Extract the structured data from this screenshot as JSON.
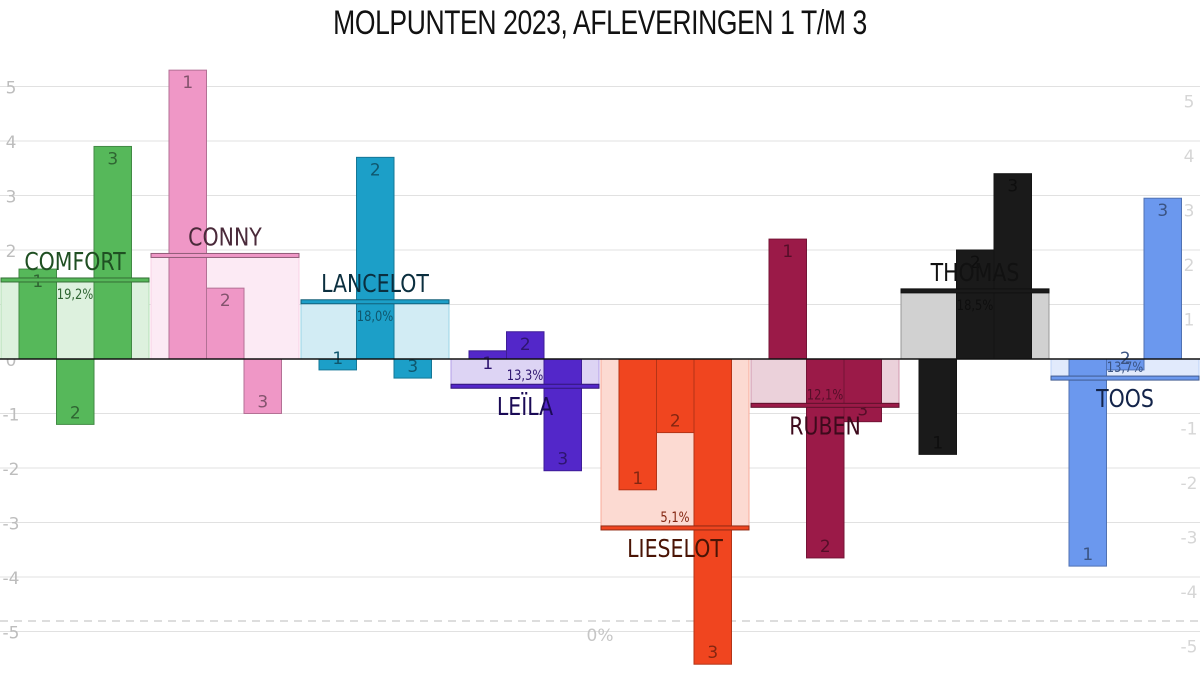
{
  "chart_data": {
    "type": "bar",
    "title": "MOLPUNTEN 2023, AFLEVERINGEN 1 T/M 3",
    "ylim": [
      -5.5,
      5.5
    ],
    "y_ticks": [
      -5,
      -4,
      -3,
      -2,
      -1,
      0,
      1,
      2,
      3,
      4,
      5
    ],
    "grid": true,
    "baseline_label": "0%",
    "episodes": [
      "1",
      "2",
      "3"
    ],
    "series": [
      {
        "name": "COMFORT",
        "color": "#56b85a",
        "label_color": "#1f4f22",
        "values": [
          1.65,
          -1.2,
          3.9
        ],
        "average": 1.45,
        "average_label": "19,2%",
        "name_position": "above"
      },
      {
        "name": "CONNY",
        "color": "#ef97c6",
        "label_color": "#4a2a3a",
        "values": [
          5.3,
          1.3,
          -1.0
        ],
        "average": 1.9,
        "average_label": "",
        "name_position": "above"
      },
      {
        "name": "LANCELOT",
        "color": "#1c9fc8",
        "label_color": "#0b2f3f",
        "values": [
          -0.2,
          3.7,
          -0.35
        ],
        "average": 1.05,
        "average_label": "18,0%",
        "name_position": "above"
      },
      {
        "name": "LEÏLA",
        "color": "#5327c9",
        "label_color": "#1a0a55",
        "values": [
          0.15,
          0.5,
          -2.05
        ],
        "average": -0.5,
        "average_label": "13,3%",
        "name_position": "below"
      },
      {
        "name": "LIESELOT",
        "color": "#f0451f",
        "label_color": "#4a1405",
        "values": [
          -2.4,
          -1.35,
          -5.6
        ],
        "average": -3.1,
        "average_label": "5,1%",
        "name_position": "below"
      },
      {
        "name": "RUBEN",
        "color": "#9b1a48",
        "label_color": "#3d0a1c",
        "values": [
          2.2,
          -3.65,
          -1.15
        ],
        "average": -0.85,
        "average_label": "12,1%",
        "name_position": "below"
      },
      {
        "name": "THOMAS",
        "color": "#1a1a1a",
        "label_color": "#111111",
        "values": [
          -1.75,
          2.0,
          3.4
        ],
        "average": 1.25,
        "average_label": "18,5%",
        "name_position": "above"
      },
      {
        "name": "TOOS",
        "color": "#6b98ee",
        "label_color": "#13244a",
        "values": [
          -3.8,
          -0.2,
          2.95
        ],
        "average": -0.35,
        "average_label": "13,7%",
        "name_position": "below"
      }
    ]
  }
}
